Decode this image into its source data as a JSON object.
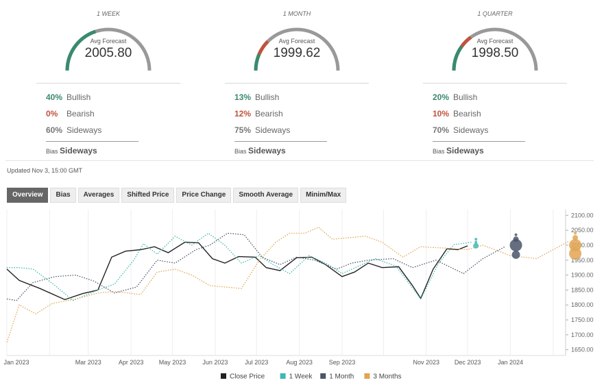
{
  "forecast_panels": [
    {
      "title": "1 WEEK",
      "gauge_label": "Avg Forecast",
      "value": "2005.80",
      "gauge_fraction": 0.4,
      "bullish_pct": "40%",
      "bullish_label": "Bullish",
      "bearish_pct": "0%",
      "bearish_label": "Bearish",
      "sideways_pct": "60%",
      "sideways_label": "Sideways",
      "bias_prefix": "Bias",
      "bias_value": "Sideways"
    },
    {
      "title": "1 MONTH",
      "gauge_label": "Avg Forecast",
      "value": "1999.62",
      "gauge_fraction": 0.13,
      "bullish_pct": "13%",
      "bullish_label": "Bullish",
      "bearish_pct": "12%",
      "bearish_label": "Bearish",
      "sideways_pct": "75%",
      "sideways_label": "Sideways",
      "bias_prefix": "Bias",
      "bias_value": "Sideways"
    },
    {
      "title": "1 QUARTER",
      "gauge_label": "Avg Forecast",
      "value": "1998.50",
      "gauge_fraction": 0.2,
      "bullish_pct": "20%",
      "bullish_label": "Bullish",
      "bearish_pct": "10%",
      "bearish_label": "Bearish",
      "sideways_pct": "70%",
      "sideways_label": "Sideways",
      "bias_prefix": "Bias",
      "bias_value": "Sideways"
    }
  ],
  "colors": {
    "bullish": "#3a8a6e",
    "bearish": "#c0533e",
    "neutral": "#999999",
    "close": "#222222",
    "week": "#3fb8b3",
    "month": "#4a5568",
    "quarter": "#e2a552"
  },
  "updated": "Updated Nov 3, 15:00 GMT",
  "tabs": [
    "Overview",
    "Bias",
    "Averages",
    "Shifted Price",
    "Price Change",
    "Smooth Average",
    "Minim/Max"
  ],
  "active_tab": "Overview",
  "chart_data": {
    "type": "line",
    "x_ticks": [
      "Jan 2023",
      "Mar 2023",
      "Apr 2023",
      "May 2023",
      "Jun 2023",
      "Jul 2023",
      "Aug 2023",
      "Sep 2023",
      "Nov 2023",
      "Dec 2023",
      "Jan 2024"
    ],
    "y_ticks": [
      "2100.00",
      "2050.00",
      "2000.00",
      "1950.00",
      "1900.00",
      "1850.00",
      "1800.00",
      "1750.00",
      "1700.00",
      "1650.00"
    ],
    "ylim": [
      1640,
      2110
    ],
    "xlim": [
      "2023-01-01",
      "2024-02-10"
    ],
    "grid": "vertical",
    "legend_position": "bottom",
    "series": [
      {
        "name": "Close Price",
        "style": "solid",
        "points": [
          [
            "2023-01-01",
            1920
          ],
          [
            "2023-01-10",
            1882
          ],
          [
            "2023-01-25",
            1855
          ],
          [
            "2023-02-12",
            1818
          ],
          [
            "2023-02-25",
            1838
          ],
          [
            "2023-03-08",
            1850
          ],
          [
            "2023-03-18",
            1960
          ],
          [
            "2023-03-28",
            1980
          ],
          [
            "2023-04-08",
            1985
          ],
          [
            "2023-04-18",
            1995
          ],
          [
            "2023-04-28",
            1975
          ],
          [
            "2023-05-10",
            2010
          ],
          [
            "2023-05-20",
            2008
          ],
          [
            "2023-05-30",
            1955
          ],
          [
            "2023-06-08",
            1940
          ],
          [
            "2023-06-18",
            1962
          ],
          [
            "2023-06-30",
            1960
          ],
          [
            "2023-07-08",
            1925
          ],
          [
            "2023-07-18",
            1915
          ],
          [
            "2023-07-30",
            1958
          ],
          [
            "2023-08-10",
            1960
          ],
          [
            "2023-08-20",
            1935
          ],
          [
            "2023-09-01",
            1895
          ],
          [
            "2023-09-10",
            1910
          ],
          [
            "2023-09-20",
            1940
          ],
          [
            "2023-09-30",
            1925
          ],
          [
            "2023-10-12",
            1928
          ],
          [
            "2023-10-22",
            1865
          ],
          [
            "2023-10-28",
            1822
          ],
          [
            "2023-11-06",
            1920
          ],
          [
            "2023-11-16",
            1988
          ],
          [
            "2023-11-24",
            1985
          ],
          [
            "2023-12-01",
            1998
          ]
        ]
      },
      {
        "name": "1 Week",
        "style": "dotted",
        "points": [
          [
            "2023-01-01",
            1925
          ],
          [
            "2023-01-10",
            1925
          ],
          [
            "2023-01-20",
            1920
          ],
          [
            "2023-02-03",
            1872
          ],
          [
            "2023-02-18",
            1815
          ],
          [
            "2023-03-08",
            1850
          ],
          [
            "2023-03-20",
            1870
          ],
          [
            "2023-04-03",
            1950
          ],
          [
            "2023-04-10",
            2005
          ],
          [
            "2023-04-20",
            1970
          ],
          [
            "2023-05-03",
            2030
          ],
          [
            "2023-05-15",
            2000
          ],
          [
            "2023-05-27",
            2040
          ],
          [
            "2023-06-08",
            2000
          ],
          [
            "2023-06-20",
            1940
          ],
          [
            "2023-07-03",
            1965
          ],
          [
            "2023-07-13",
            1935
          ],
          [
            "2023-07-25",
            1905
          ],
          [
            "2023-08-08",
            1965
          ],
          [
            "2023-08-20",
            1940
          ],
          [
            "2023-09-01",
            1905
          ],
          [
            "2023-09-13",
            1930
          ],
          [
            "2023-09-25",
            1955
          ],
          [
            "2023-10-10",
            1930
          ],
          [
            "2023-10-28",
            1820
          ],
          [
            "2023-11-10",
            1940
          ],
          [
            "2023-11-21",
            2002
          ],
          [
            "2023-12-04",
            2010
          ]
        ]
      },
      {
        "name": "1 Month",
        "style": "dotted",
        "points": [
          [
            "2023-01-01",
            1820
          ],
          [
            "2023-01-08",
            1815
          ],
          [
            "2023-01-20",
            1875
          ],
          [
            "2023-02-05",
            1895
          ],
          [
            "2023-02-20",
            1900
          ],
          [
            "2023-03-05",
            1880
          ],
          [
            "2023-03-20",
            1840
          ],
          [
            "2023-04-05",
            1860
          ],
          [
            "2023-04-20",
            1950
          ],
          [
            "2023-05-03",
            1940
          ],
          [
            "2023-05-18",
            1985
          ],
          [
            "2023-05-28",
            2000
          ],
          [
            "2023-06-10",
            2040
          ],
          [
            "2023-06-22",
            2035
          ],
          [
            "2023-07-05",
            1960
          ],
          [
            "2023-07-18",
            1935
          ],
          [
            "2023-07-30",
            1960
          ],
          [
            "2023-08-12",
            1950
          ],
          [
            "2023-08-28",
            1920
          ],
          [
            "2023-09-08",
            1940
          ],
          [
            "2023-09-20",
            1950
          ],
          [
            "2023-10-08",
            1955
          ],
          [
            "2023-10-22",
            1925
          ],
          [
            "2023-11-08",
            1950
          ],
          [
            "2023-11-28",
            1905
          ],
          [
            "2023-12-12",
            1955
          ],
          [
            "2023-12-28",
            1995
          ]
        ]
      },
      {
        "name": "3 Months",
        "style": "dotted",
        "points": [
          [
            "2023-01-01",
            1675
          ],
          [
            "2023-01-10",
            1800
          ],
          [
            "2023-01-22",
            1770
          ],
          [
            "2023-02-03",
            1805
          ],
          [
            "2023-02-20",
            1820
          ],
          [
            "2023-03-08",
            1840
          ],
          [
            "2023-03-20",
            1845
          ],
          [
            "2023-04-08",
            1835
          ],
          [
            "2023-04-20",
            1910
          ],
          [
            "2023-05-03",
            1920
          ],
          [
            "2023-05-15",
            1900
          ],
          [
            "2023-05-28",
            1865
          ],
          [
            "2023-06-08",
            1860
          ],
          [
            "2023-06-20",
            1855
          ],
          [
            "2023-07-03",
            1950
          ],
          [
            "2023-07-15",
            2010
          ],
          [
            "2023-07-25",
            2040
          ],
          [
            "2023-08-05",
            2040
          ],
          [
            "2023-08-15",
            2060
          ],
          [
            "2023-08-25",
            2020
          ],
          [
            "2023-09-05",
            2025
          ],
          [
            "2023-09-18",
            2030
          ],
          [
            "2023-09-30",
            2010
          ],
          [
            "2023-10-15",
            1960
          ],
          [
            "2023-10-28",
            1995
          ],
          [
            "2023-11-15",
            1990
          ],
          [
            "2023-12-01",
            1985
          ],
          [
            "2023-12-12",
            2000
          ],
          [
            "2024-01-01",
            1965
          ],
          [
            "2024-01-20",
            1955
          ],
          [
            "2024-02-05",
            1995
          ],
          [
            "2024-02-12",
            2012
          ]
        ]
      }
    ],
    "forecast_markers": [
      {
        "date": "2023-12-07",
        "y": 1998,
        "size": "small",
        "color": "week"
      },
      {
        "date": "2023-12-07",
        "y": 2010,
        "size": "tiny",
        "color": "week"
      },
      {
        "date": "2023-12-07",
        "y": 2020,
        "size": "tiny",
        "color": "week"
      },
      {
        "date": "2024-01-05",
        "y": 2000,
        "size": "large",
        "color": "month"
      },
      {
        "date": "2024-01-05",
        "y": 1968,
        "size": "medium",
        "color": "month"
      },
      {
        "date": "2024-01-05",
        "y": 2020,
        "size": "small",
        "color": "month"
      },
      {
        "date": "2024-01-05",
        "y": 2035,
        "size": "tiny",
        "color": "month"
      },
      {
        "date": "2024-02-17",
        "y": 2000,
        "size": "large",
        "color": "quarter"
      },
      {
        "date": "2024-02-17",
        "y": 1972,
        "size": "large",
        "color": "quarter"
      },
      {
        "date": "2024-02-17",
        "y": 2025,
        "size": "small",
        "color": "quarter"
      },
      {
        "date": "2024-02-17",
        "y": 2040,
        "size": "tiny",
        "color": "quarter"
      }
    ]
  }
}
